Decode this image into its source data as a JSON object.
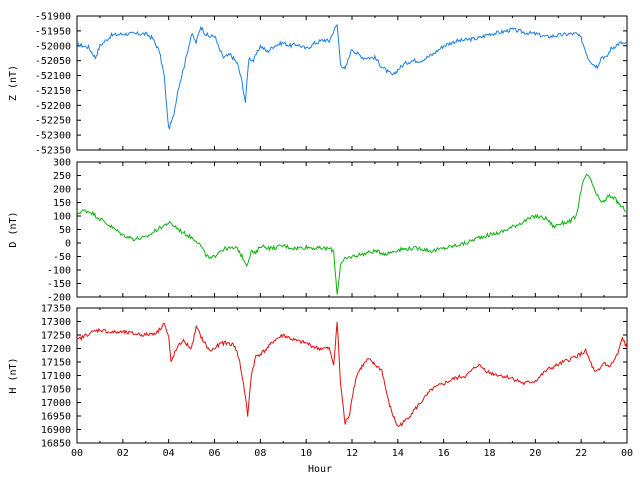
{
  "chart_data": [
    {
      "type": "line",
      "ylabel": "Z (nT)",
      "ylim": [
        -52350,
        -51900
      ],
      "yticks": [
        -51900,
        -51950,
        -52000,
        -52050,
        -52100,
        -52150,
        -52200,
        -52250,
        -52300,
        -52350
      ],
      "xlim": [
        0,
        24
      ],
      "color": "#1f7fe0",
      "series": [
        {
          "x": [
            0,
            0.5,
            0.8,
            1,
            1.5,
            2,
            2.5,
            3,
            3.3,
            3.6,
            3.8,
            4,
            4.2,
            4.4,
            4.7,
            5,
            5.2,
            5.4,
            5.6,
            5.8,
            6,
            6.2,
            6.4,
            6.7,
            7,
            7.2,
            7.35,
            7.5,
            7.7,
            8,
            8.3,
            8.6,
            9,
            9.3,
            9.6,
            10,
            10.4,
            10.8,
            11,
            11.2,
            11.35,
            11.5,
            11.7,
            11.9,
            12,
            12.2,
            12.5,
            13,
            13.3,
            13.6,
            13.8,
            14,
            14.3,
            14.6,
            15,
            15.5,
            16,
            16.5,
            17,
            17.5,
            18,
            18.5,
            19,
            19.5,
            20,
            20.5,
            21,
            21.5,
            21.8,
            22,
            22.3,
            22.5,
            22.7,
            22.9,
            23.1,
            23.3,
            23.5,
            23.7,
            24
          ],
          "y": [
            -51995,
            -52005,
            -52040,
            -52000,
            -51965,
            -51960,
            -51960,
            -51960,
            -51975,
            -52020,
            -52100,
            -52280,
            -52240,
            -52150,
            -52060,
            -51960,
            -51990,
            -51935,
            -51960,
            -51970,
            -51965,
            -52010,
            -52040,
            -52030,
            -52060,
            -52120,
            -52190,
            -52040,
            -52050,
            -52000,
            -52020,
            -52000,
            -51990,
            -52000,
            -51995,
            -52010,
            -51990,
            -51980,
            -51985,
            -51950,
            -51930,
            -52060,
            -52080,
            -52030,
            -52010,
            -52025,
            -52040,
            -52040,
            -52070,
            -52090,
            -52100,
            -52080,
            -52060,
            -52050,
            -52050,
            -52030,
            -52000,
            -51985,
            -51980,
            -51975,
            -51960,
            -51955,
            -51945,
            -51955,
            -51960,
            -51970,
            -51965,
            -51960,
            -51960,
            -51975,
            -52040,
            -52060,
            -52070,
            -52035,
            -52040,
            -52010,
            -52000,
            -51990,
            -51995
          ]
        }
      ]
    },
    {
      "type": "line",
      "ylabel": "D (nT)",
      "ylim": [
        -200,
        300
      ],
      "yticks": [
        300,
        250,
        200,
        150,
        100,
        50,
        0,
        -50,
        -100,
        -150,
        -200
      ],
      "xlim": [
        0,
        24
      ],
      "color": "#10b010",
      "series": [
        {
          "x": [
            0,
            0.3,
            0.6,
            1,
            1.5,
            2,
            2.5,
            3,
            3.5,
            4,
            4.3,
            4.6,
            5,
            5.2,
            5.4,
            5.6,
            5.8,
            6,
            6.2,
            6.5,
            7,
            7.2,
            7.4,
            7.5,
            7.6,
            7.8,
            8,
            8.5,
            9,
            9.5,
            10,
            10.5,
            11,
            11.2,
            11.35,
            11.5,
            11.7,
            12,
            12.5,
            13,
            13.5,
            14,
            14.5,
            15,
            15.5,
            16,
            16.5,
            17,
            17.5,
            18,
            18.5,
            19,
            19.5,
            20,
            20.5,
            20.8,
            21,
            21.5,
            21.8,
            22,
            22.2,
            22.4,
            22.6,
            22.8,
            23,
            23.2,
            23.4,
            23.6,
            23.8,
            24
          ],
          "y": [
            110,
            120,
            115,
            90,
            60,
            30,
            15,
            20,
            50,
            75,
            60,
            40,
            20,
            10,
            -10,
            -40,
            -60,
            -50,
            -30,
            -20,
            -20,
            -50,
            -80,
            -60,
            -30,
            -40,
            -10,
            -20,
            -10,
            -20,
            -15,
            -20,
            -20,
            -30,
            -190,
            -80,
            -60,
            -50,
            -40,
            -30,
            -40,
            -25,
            -20,
            -20,
            -30,
            -20,
            -10,
            0,
            20,
            30,
            40,
            60,
            80,
            100,
            90,
            60,
            70,
            80,
            100,
            200,
            250,
            240,
            190,
            160,
            150,
            175,
            170,
            150,
            130,
            120
          ]
        }
      ]
    },
    {
      "type": "line",
      "ylabel": "H (nT)",
      "ylim": [
        16850,
        17350
      ],
      "yticks": [
        17350,
        17300,
        17250,
        17200,
        17150,
        17100,
        17050,
        17000,
        16950,
        16900,
        16850
      ],
      "xlim": [
        0,
        24
      ],
      "xlabel": "Hour",
      "xticks": [
        "00",
        "02",
        "04",
        "06",
        "08",
        "10",
        "12",
        "14",
        "16",
        "18",
        "20",
        "22",
        "00"
      ],
      "color": "#e01010",
      "series": [
        {
          "x": [
            0,
            0.5,
            1,
            1.5,
            2,
            2.5,
            3,
            3.5,
            3.8,
            4,
            4.1,
            4.3,
            4.6,
            5,
            5.2,
            5.5,
            5.8,
            6,
            6.3,
            6.6,
            6.9,
            7.1,
            7.3,
            7.45,
            7.6,
            7.8,
            8,
            8.3,
            8.6,
            9,
            9.5,
            10,
            10.5,
            11,
            11.2,
            11.35,
            11.5,
            11.7,
            11.9,
            12,
            12.2,
            12.4,
            12.7,
            13,
            13.3,
            13.6,
            13.8,
            14,
            14.3,
            14.6,
            15,
            15.5,
            16,
            16.5,
            17,
            17.5,
            18,
            18.5,
            19,
            19.5,
            20,
            20.5,
            21,
            21.5,
            22,
            22.2,
            22.4,
            22.6,
            22.8,
            23,
            23.2,
            23.4,
            23.6,
            23.8,
            24
          ],
          "y": [
            17230,
            17255,
            17270,
            17260,
            17260,
            17255,
            17250,
            17260,
            17295,
            17240,
            17150,
            17190,
            17230,
            17200,
            17280,
            17230,
            17190,
            17200,
            17220,
            17220,
            17210,
            17150,
            17050,
            16950,
            17100,
            17170,
            17180,
            17200,
            17230,
            17250,
            17230,
            17220,
            17200,
            17200,
            17140,
            17300,
            17070,
            16920,
            16960,
            17020,
            17100,
            17130,
            17160,
            17140,
            17120,
            17000,
            16950,
            16910,
            16930,
            16960,
            17000,
            17050,
            17070,
            17090,
            17100,
            17140,
            17110,
            17100,
            17090,
            17070,
            17080,
            17120,
            17140,
            17160,
            17180,
            17190,
            17150,
            17110,
            17120,
            17150,
            17130,
            17150,
            17180,
            17240,
            17200
          ]
        }
      ]
    }
  ]
}
